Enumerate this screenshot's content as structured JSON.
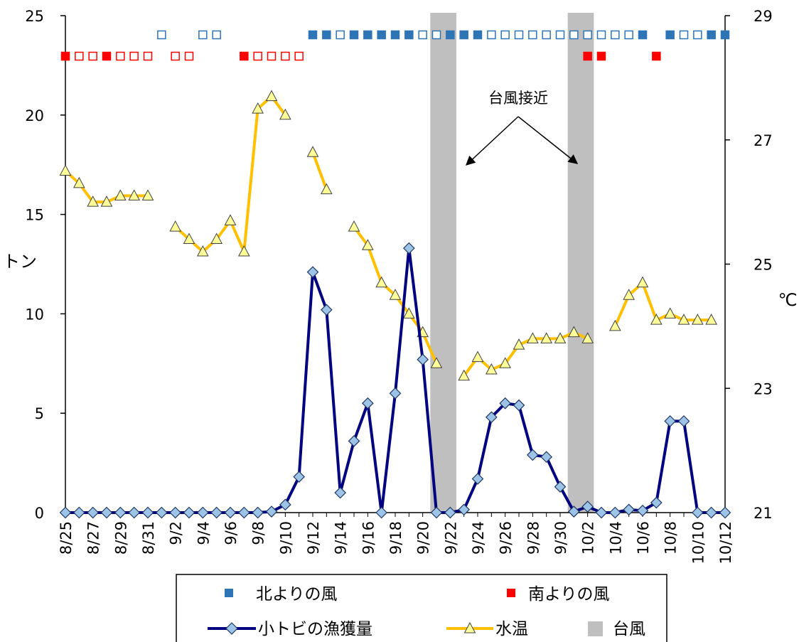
{
  "chart_data": {
    "type": "line",
    "x": [
      "8/25",
      "8/26",
      "8/27",
      "8/28",
      "8/29",
      "8/30",
      "8/31",
      "9/1",
      "9/2",
      "9/3",
      "9/4",
      "9/5",
      "9/6",
      "9/7",
      "9/8",
      "9/9",
      "9/10",
      "9/11",
      "9/12",
      "9/13",
      "9/14",
      "9/15",
      "9/16",
      "9/17",
      "9/18",
      "9/19",
      "9/20",
      "9/21",
      "9/22",
      "9/23",
      "9/24",
      "9/25",
      "9/26",
      "9/27",
      "9/28",
      "9/29",
      "9/30",
      "10/1",
      "10/2",
      "10/3",
      "10/4",
      "10/5",
      "10/6",
      "10/7",
      "10/8",
      "10/9",
      "10/10",
      "10/11",
      "10/12"
    ],
    "x_tick_labels": [
      "8/25",
      "8/27",
      "8/29",
      "8/31",
      "9/2",
      "9/4",
      "9/6",
      "9/8",
      "9/10",
      "9/12",
      "9/14",
      "9/16",
      "9/18",
      "9/20",
      "9/22",
      "9/24",
      "9/26",
      "9/28",
      "9/30",
      "10/2",
      "10/4",
      "10/6",
      "10/8",
      "10/10",
      "10/12"
    ],
    "ylabel_left": "トン",
    "ylabel_right": "℃",
    "ylim_left": [
      0,
      25
    ],
    "ylim_right": [
      21,
      29
    ],
    "yticks_left": [
      "0",
      "5",
      "10",
      "15",
      "20",
      "25"
    ],
    "yticks_right": [
      "21",
      "23",
      "25",
      "27",
      "29"
    ],
    "series": [
      {
        "name": "小トビの漁獲量",
        "axis": "left",
        "color": "#000080",
        "marker": "diamond",
        "values": [
          0,
          0,
          0,
          0,
          0,
          0,
          0,
          0,
          0,
          0,
          0,
          0,
          0,
          0,
          0,
          0.05,
          0.4,
          1.8,
          12.1,
          10.2,
          1.0,
          3.6,
          5.5,
          0,
          6.0,
          13.3,
          7.7,
          0,
          0,
          0.15,
          1.7,
          4.8,
          5.5,
          5.4,
          2.9,
          2.8,
          1.3,
          0.05,
          0.3,
          0,
          0,
          0.15,
          0.1,
          0.5,
          4.6,
          4.6,
          0,
          0,
          0
        ]
      },
      {
        "name": "水温",
        "axis": "right",
        "color": "#FFC000",
        "marker": "triangle",
        "values": [
          26.5,
          26.3,
          26.0,
          26.0,
          26.1,
          26.1,
          26.1,
          null,
          25.6,
          25.4,
          25.2,
          25.4,
          25.7,
          25.2,
          27.5,
          27.7,
          27.4,
          null,
          26.8,
          26.2,
          null,
          25.6,
          25.3,
          24.7,
          24.5,
          24.2,
          23.9,
          23.4,
          null,
          23.2,
          23.5,
          23.3,
          23.4,
          23.7,
          23.8,
          23.8,
          23.8,
          23.9,
          23.8,
          null,
          24.0,
          24.5,
          24.7,
          24.1,
          24.2,
          24.1,
          24.1,
          24.1,
          null
        ]
      }
    ],
    "typhoon_periods": [
      {
        "name": "台風",
        "start": "9/21",
        "end": "9/22"
      },
      {
        "name": "台風",
        "start": "10/1",
        "end": "10/2"
      }
    ],
    "wind_north": {
      "name": "北よりの風",
      "color": "#2E75B6",
      "markers": {
        "9/1": "hollow",
        "9/4": "hollow",
        "9/5": "hollow",
        "9/12": "filled",
        "9/13": "filled",
        "9/14": "hollow",
        "9/15": "filled",
        "9/16": "filled",
        "9/17": "filled",
        "9/18": "filled",
        "9/19": "filled",
        "9/20": "hollow",
        "9/21": "hollow",
        "9/22": "filled",
        "9/23": "filled",
        "9/24": "filled",
        "9/25": "hollow",
        "9/26": "hollow",
        "9/27": "hollow",
        "9/28": "hollow",
        "9/29": "hollow",
        "9/30": "hollow",
        "10/1": "hollow",
        "10/2": "hollow",
        "10/3": "hollow",
        "10/4": "hollow",
        "10/5": "hollow",
        "10/6": "filled",
        "10/8": "filled",
        "10/9": "hollow",
        "10/10": "hollow",
        "10/11": "filled",
        "10/12": "filled"
      }
    },
    "wind_south": {
      "name": "南よりの風",
      "color": "#FF0000",
      "markers": {
        "8/25": "filled",
        "8/26": "hollow",
        "8/27": "hollow",
        "8/28": "filled",
        "8/29": "hollow",
        "8/30": "hollow",
        "8/31": "hollow",
        "9/2": "hollow",
        "9/3": "hollow",
        "9/7": "filled",
        "9/8": "hollow",
        "9/9": "hollow",
        "9/10": "hollow",
        "9/11": "hollow",
        "10/2": "filled",
        "10/3": "filled",
        "10/7": "filled"
      }
    },
    "annotation": "台風接近",
    "legend": {
      "placement": "bottom",
      "items": [
        "北よりの風",
        "南よりの風",
        "小トビの漁獲量",
        "水温",
        "台風"
      ]
    }
  }
}
